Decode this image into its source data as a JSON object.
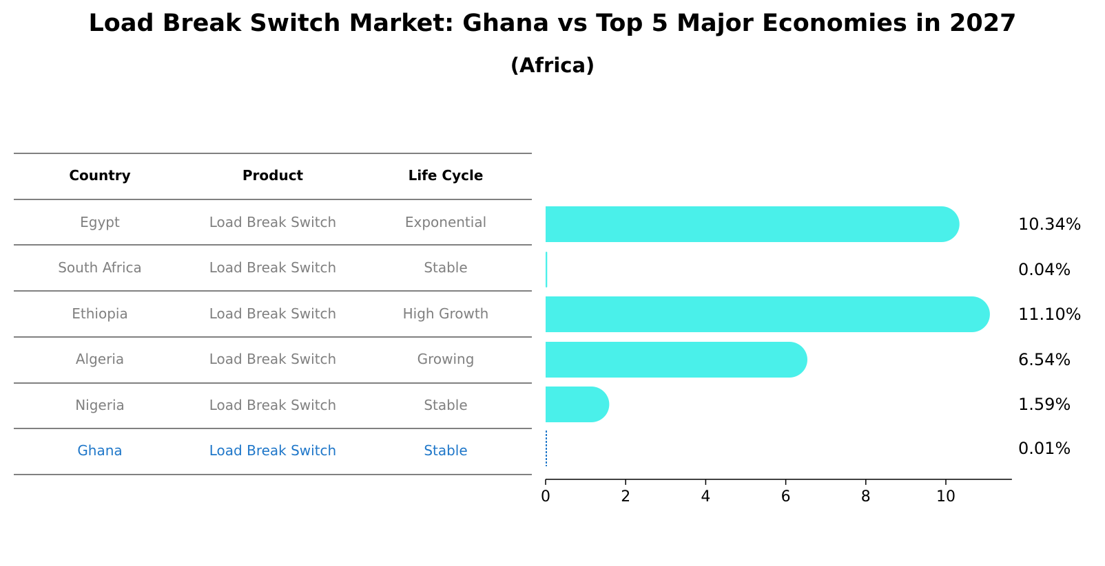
{
  "title": "Load Break Switch Market: Ghana vs Top 5 Major Economies in 2027",
  "subtitle": "(Africa)",
  "chart_data": {
    "type": "table",
    "table": {
      "headers": [
        "Country",
        "Product",
        "Life Cycle"
      ],
      "rows": [
        {
          "country": "Egypt",
          "product": "Load Break Switch",
          "life_cycle": "Exponential",
          "highlight": false
        },
        {
          "country": "South Africa",
          "product": "Load Break Switch",
          "life_cycle": "Stable",
          "highlight": false
        },
        {
          "country": "Ethiopia",
          "product": "Load Break Switch",
          "life_cycle": "High Growth",
          "highlight": false
        },
        {
          "country": "Algeria",
          "product": "Load Break Switch",
          "life_cycle": "Growing",
          "highlight": false
        },
        {
          "country": "Nigeria",
          "product": "Load Break Switch",
          "life_cycle": "Stable",
          "highlight": false
        },
        {
          "country": "Ghana",
          "product": "Load Break Switch",
          "life_cycle": "Stable",
          "highlight": true
        }
      ]
    },
    "bars": {
      "type": "bar",
      "orientation": "horizontal",
      "categories": [
        "Egypt",
        "South Africa",
        "Ethiopia",
        "Algeria",
        "Nigeria",
        "Ghana"
      ],
      "values": [
        10.34,
        0.04,
        11.1,
        6.54,
        1.59,
        0.01
      ],
      "value_labels": [
        "10.34%",
        "0.04%",
        "11.10%",
        "6.54%",
        "1.59%",
        "0.01%"
      ],
      "xlim": [
        0,
        11.65
      ],
      "xticks": [
        0,
        2,
        4,
        6,
        8,
        10
      ],
      "bar_color": "#4af0ea",
      "highlight_color": "#1f77c9",
      "grid": false
    }
  }
}
